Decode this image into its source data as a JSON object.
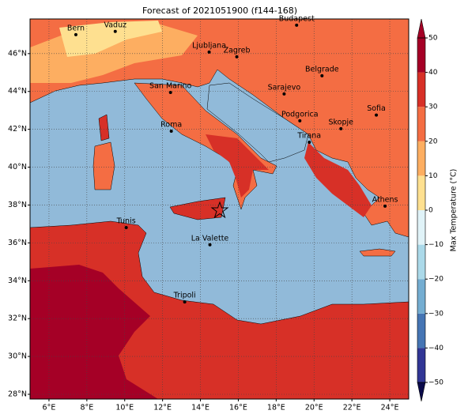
{
  "title": "Forecast of 2021051900 (f144-168)",
  "map": {
    "xlim": [
      5,
      25
    ],
    "ylim": [
      27.75,
      47.83
    ],
    "xticks": [
      {
        "value": 6,
        "label": "6°E"
      },
      {
        "value": 8,
        "label": "8°E"
      },
      {
        "value": 10,
        "label": "10°E"
      },
      {
        "value": 12,
        "label": "12°E"
      },
      {
        "value": 14,
        "label": "14°E"
      },
      {
        "value": 16,
        "label": "16°E"
      },
      {
        "value": 18,
        "label": "18°E"
      },
      {
        "value": 20,
        "label": "20°E"
      },
      {
        "value": 22,
        "label": "22°E"
      },
      {
        "value": 24,
        "label": "24°E"
      }
    ],
    "yticks": [
      {
        "value": 28,
        "label": "28°N"
      },
      {
        "value": 30,
        "label": "30°N"
      },
      {
        "value": 32,
        "label": "32°N"
      },
      {
        "value": 34,
        "label": "34°N"
      },
      {
        "value": 36,
        "label": "36°N"
      },
      {
        "value": 38,
        "label": "38°N"
      },
      {
        "value": 40,
        "label": "40°N"
      },
      {
        "value": 42,
        "label": "42°N"
      },
      {
        "value": 44,
        "label": "44°N"
      },
      {
        "value": 46,
        "label": "46°N"
      }
    ],
    "cities": [
      {
        "name": "Bern",
        "lon": 7.42,
        "lat": 47.0
      },
      {
        "name": "Vaduz",
        "lon": 9.5,
        "lat": 47.17
      },
      {
        "name": "Budapest",
        "lon": 19.08,
        "lat": 47.5
      },
      {
        "name": "Ljubljana",
        "lon": 14.46,
        "lat": 46.08
      },
      {
        "name": "Zagreb",
        "lon": 15.92,
        "lat": 45.83
      },
      {
        "name": "Belgrade",
        "lon": 20.42,
        "lat": 44.83
      },
      {
        "name": "San Marino",
        "lon": 12.42,
        "lat": 43.95
      },
      {
        "name": "Sarajevo",
        "lon": 18.42,
        "lat": 43.87
      },
      {
        "name": "Sofia",
        "lon": 23.29,
        "lat": 42.75
      },
      {
        "name": "Roma",
        "lon": 12.46,
        "lat": 41.9
      },
      {
        "name": "Podgorica",
        "lon": 19.25,
        "lat": 42.45
      },
      {
        "name": "Skopje",
        "lon": 21.42,
        "lat": 42.03
      },
      {
        "name": "Tirana",
        "lon": 19.75,
        "lat": 41.32
      },
      {
        "name": "Athens",
        "lon": 23.75,
        "lat": 37.94
      },
      {
        "name": "Tunis",
        "lon": 10.08,
        "lat": 36.81
      },
      {
        "name": "La Valette",
        "lon": 14.5,
        "lat": 35.9
      },
      {
        "name": "Tripoli",
        "lon": 13.17,
        "lat": 32.88
      }
    ]
  },
  "colorbar": {
    "label": "Max Temperature (°C)",
    "lim": [
      -50,
      50
    ],
    "ticks": [
      {
        "value": -50,
        "label": "−50"
      },
      {
        "value": -40,
        "label": "−40"
      },
      {
        "value": -30,
        "label": "−30"
      },
      {
        "value": -20,
        "label": "−20"
      },
      {
        "value": -10,
        "label": "−10"
      },
      0,
      10,
      20,
      30,
      40,
      50
    ],
    "colors": [
      "#313695",
      "#4575b4",
      "#74add1",
      "#abd9e9",
      "#e0f3f8",
      "#fee090",
      "#fdae61",
      "#f46d43",
      "#d73027",
      "#a50026"
    ]
  }
}
